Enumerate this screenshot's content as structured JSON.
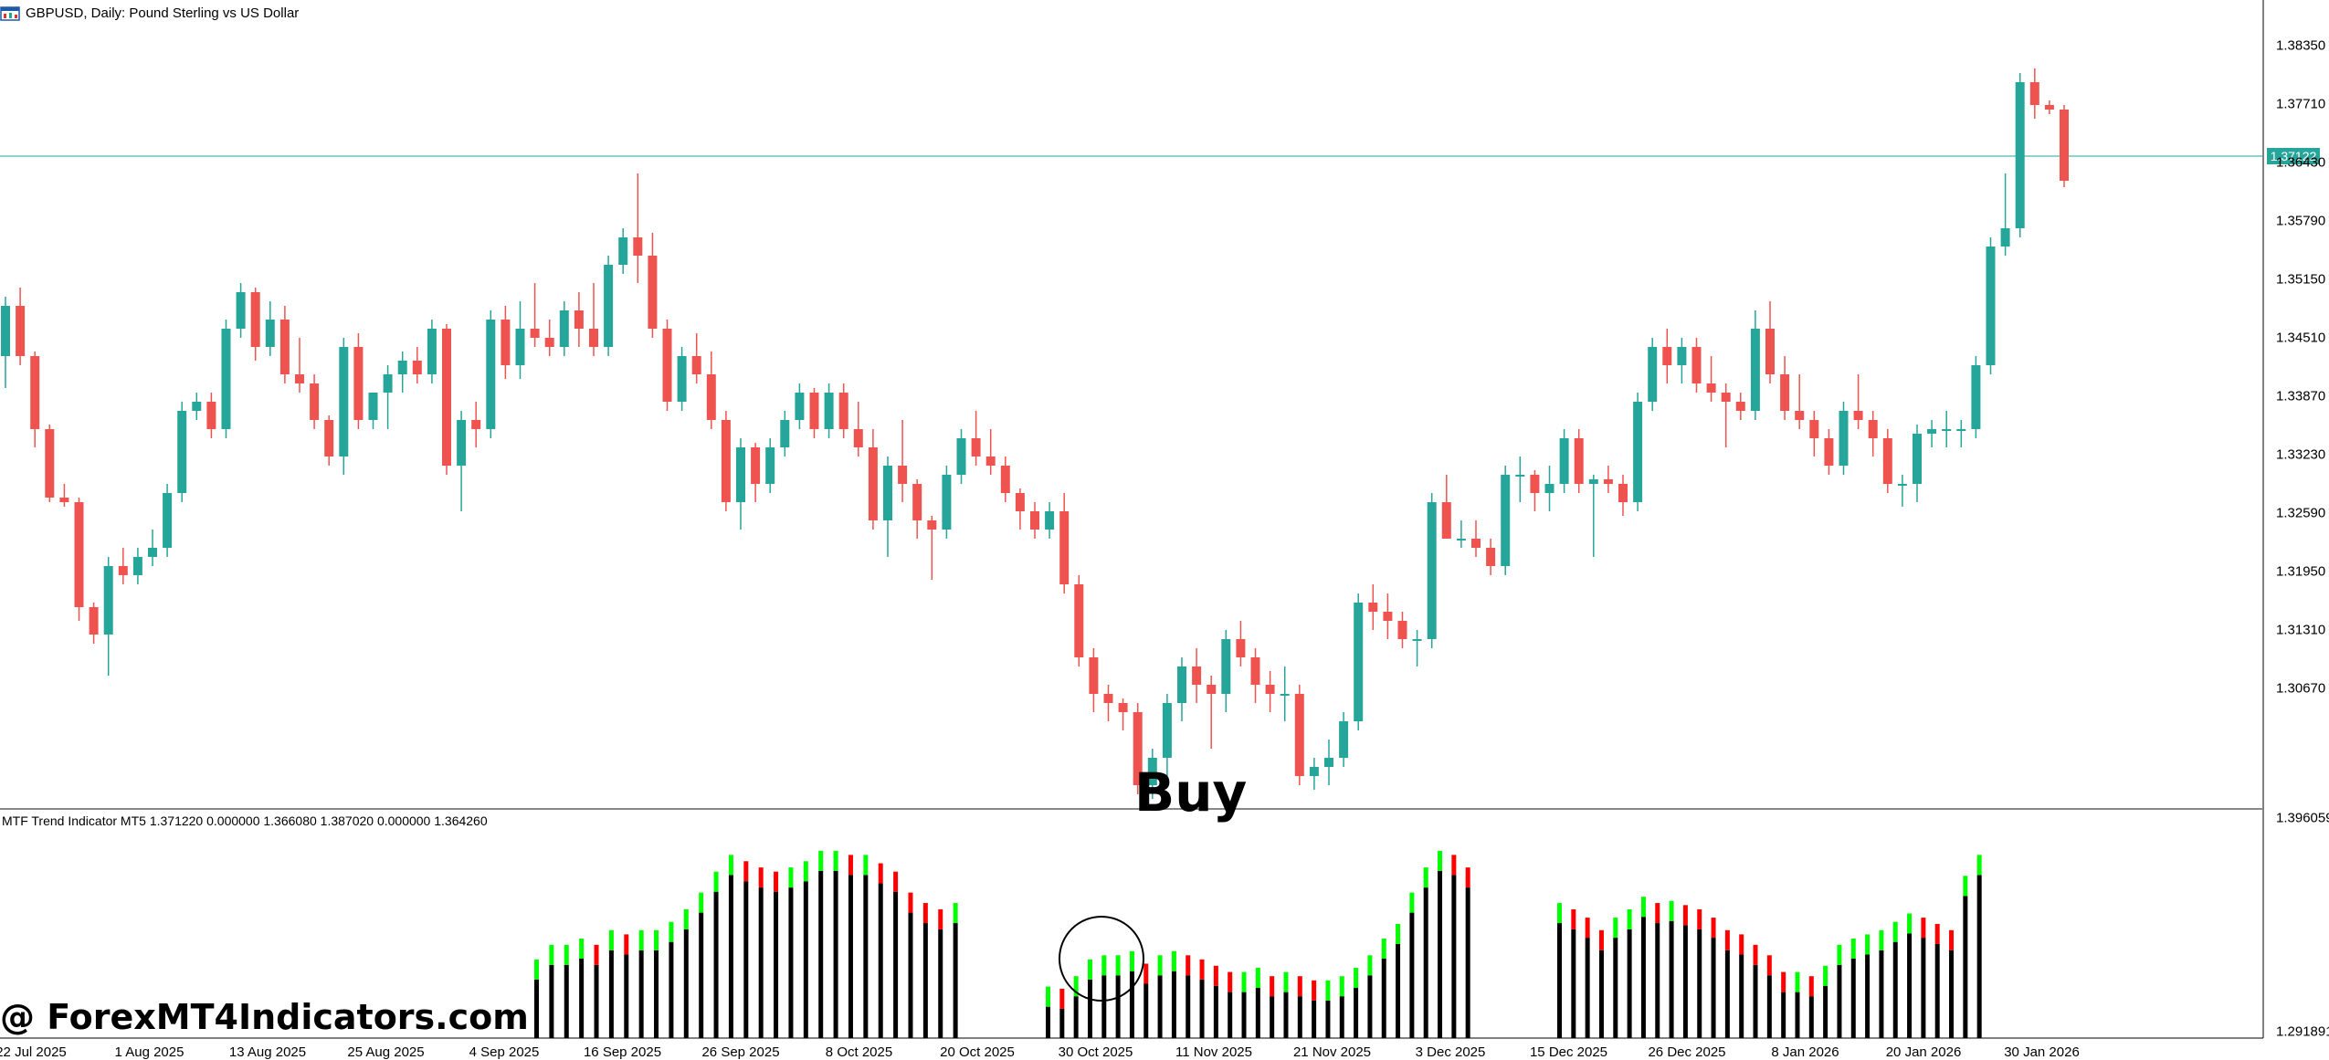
{
  "header": {
    "symbol_title": "GBPUSD, Daily:  Pound Sterling vs US Dollar",
    "icon": "chart-window-icon"
  },
  "price_axis": {
    "labels": [
      "1.38350",
      "1.37710",
      "1.36430",
      "1.35790",
      "1.35150",
      "1.34510",
      "1.33870",
      "1.33230",
      "1.32590",
      "1.31950",
      "1.31310",
      "1.30670"
    ],
    "current_price": "1.37122",
    "current_price_color": "#26a69a"
  },
  "indicator": {
    "label": "MTF Trend Indicator MT5 1.371220 0.000000 1.366080 1.387020 0.000000 1.364260",
    "axis_labels": [
      "1.396059",
      "1.291891"
    ]
  },
  "date_axis": {
    "labels": [
      "22 Jul 2025",
      "1 Aug 2025",
      "13 Aug 2025",
      "25 Aug 2025",
      "4 Sep 2025",
      "16 Sep 2025",
      "26 Sep 2025",
      "8 Oct 2025",
      "20 Oct 2025",
      "30 Oct 2025",
      "11 Nov 2025",
      "21 Nov 2025",
      "3 Dec 2025",
      "15 Dec 2025",
      "26 Dec 2025",
      "8 Jan 2026",
      "20 Jan 2026",
      "30 Jan 2026"
    ]
  },
  "annotations": {
    "buy_text": "Buy",
    "watermark": "@ ForexMT4Indicators.com"
  },
  "colors": {
    "bull": "#26a69a",
    "bear": "#ef5350",
    "indicator_up": "#00ff00",
    "indicator_down": "#ff0000",
    "indicator_bar": "#000000"
  },
  "chart_data": {
    "type": "candlestick",
    "symbol": "GBPUSD",
    "timeframe": "Daily",
    "ylim": [
      1.3025,
      1.3885
    ],
    "candles": [
      [
        1.352,
        1.3585,
        1.3485,
        1.3575
      ],
      [
        1.3575,
        1.3595,
        1.351,
        1.352
      ],
      [
        1.352,
        1.3525,
        1.342,
        1.344
      ],
      [
        1.344,
        1.3445,
        1.336,
        1.3365
      ],
      [
        1.3365,
        1.338,
        1.3355,
        1.336
      ],
      [
        1.336,
        1.3365,
        1.323,
        1.3245
      ],
      [
        1.3245,
        1.325,
        1.3205,
        1.3215
      ],
      [
        1.3215,
        1.33,
        1.317,
        1.329
      ],
      [
        1.329,
        1.331,
        1.327,
        1.328
      ],
      [
        1.328,
        1.331,
        1.327,
        1.33
      ],
      [
        1.33,
        1.333,
        1.329,
        1.331
      ],
      [
        1.331,
        1.338,
        1.33,
        1.337
      ],
      [
        1.337,
        1.347,
        1.336,
        1.346
      ],
      [
        1.346,
        1.348,
        1.345,
        1.347
      ],
      [
        1.347,
        1.348,
        1.343,
        1.344
      ],
      [
        1.344,
        1.356,
        1.343,
        1.355
      ],
      [
        1.355,
        1.36,
        1.354,
        1.359
      ],
      [
        1.359,
        1.3595,
        1.3515,
        1.353
      ],
      [
        1.353,
        1.358,
        1.352,
        1.356
      ],
      [
        1.356,
        1.3575,
        1.349,
        1.35
      ],
      [
        1.35,
        1.354,
        1.348,
        1.349
      ],
      [
        1.349,
        1.35,
        1.344,
        1.345
      ],
      [
        1.345,
        1.3455,
        1.34,
        1.341
      ],
      [
        1.341,
        1.354,
        1.339,
        1.353
      ],
      [
        1.353,
        1.3545,
        1.344,
        1.345
      ],
      [
        1.345,
        1.348,
        1.344,
        1.348
      ],
      [
        1.348,
        1.351,
        1.344,
        1.35
      ],
      [
        1.35,
        1.3525,
        1.348,
        1.3515
      ],
      [
        1.3515,
        1.353,
        1.349,
        1.35
      ],
      [
        1.35,
        1.356,
        1.349,
        1.355
      ],
      [
        1.355,
        1.3555,
        1.339,
        1.34
      ],
      [
        1.34,
        1.346,
        1.335,
        1.345
      ],
      [
        1.345,
        1.347,
        1.342,
        1.344
      ],
      [
        1.344,
        1.357,
        1.343,
        1.356
      ],
      [
        1.356,
        1.3575,
        1.3495,
        1.351
      ],
      [
        1.351,
        1.358,
        1.3495,
        1.355
      ],
      [
        1.355,
        1.36,
        1.353,
        1.354
      ],
      [
        1.354,
        1.356,
        1.352,
        1.353
      ],
      [
        1.353,
        1.358,
        1.352,
        1.357
      ],
      [
        1.357,
        1.359,
        1.353,
        1.355
      ],
      [
        1.355,
        1.36,
        1.352,
        1.353
      ],
      [
        1.353,
        1.363,
        1.352,
        1.362
      ],
      [
        1.362,
        1.366,
        1.361,
        1.365
      ],
      [
        1.365,
        1.372,
        1.36,
        1.363
      ],
      [
        1.363,
        1.3655,
        1.354,
        1.355
      ],
      [
        1.355,
        1.356,
        1.346,
        1.347
      ],
      [
        1.347,
        1.353,
        1.346,
        1.352
      ],
      [
        1.352,
        1.3545,
        1.349,
        1.35
      ],
      [
        1.35,
        1.3525,
        1.344,
        1.345
      ],
      [
        1.345,
        1.346,
        1.335,
        1.336
      ],
      [
        1.336,
        1.343,
        1.333,
        1.342
      ],
      [
        1.342,
        1.3425,
        1.336,
        1.338
      ],
      [
        1.338,
        1.343,
        1.337,
        1.342
      ],
      [
        1.342,
        1.346,
        1.341,
        1.345
      ],
      [
        1.345,
        1.349,
        1.344,
        1.348
      ],
      [
        1.348,
        1.3485,
        1.343,
        1.344
      ],
      [
        1.344,
        1.349,
        1.343,
        1.348
      ],
      [
        1.348,
        1.349,
        1.343,
        1.344
      ],
      [
        1.344,
        1.347,
        1.341,
        1.342
      ],
      [
        1.342,
        1.344,
        1.333,
        1.334
      ],
      [
        1.334,
        1.341,
        1.33,
        1.34
      ],
      [
        1.34,
        1.345,
        1.336,
        1.338
      ],
      [
        1.338,
        1.3385,
        1.332,
        1.334
      ],
      [
        1.334,
        1.3345,
        1.3275,
        1.333
      ],
      [
        1.333,
        1.34,
        1.332,
        1.339
      ],
      [
        1.339,
        1.344,
        1.338,
        1.343
      ],
      [
        1.343,
        1.346,
        1.34,
        1.341
      ],
      [
        1.341,
        1.344,
        1.339,
        1.34
      ],
      [
        1.34,
        1.341,
        1.336,
        1.337
      ],
      [
        1.337,
        1.3375,
        1.333,
        1.335
      ],
      [
        1.335,
        1.336,
        1.332,
        1.333
      ],
      [
        1.333,
        1.336,
        1.332,
        1.335
      ],
      [
        1.335,
        1.337,
        1.326,
        1.327
      ],
      [
        1.327,
        1.328,
        1.318,
        1.319
      ],
      [
        1.319,
        1.32,
        1.313,
        1.315
      ],
      [
        1.315,
        1.316,
        1.312,
        1.314
      ],
      [
        1.314,
        1.3145,
        1.311,
        1.313
      ],
      [
        1.313,
        1.314,
        1.304,
        1.305
      ],
      [
        1.305,
        1.309,
        1.3035,
        1.308
      ],
      [
        1.308,
        1.315,
        1.306,
        1.314
      ],
      [
        1.314,
        1.319,
        1.312,
        1.318
      ],
      [
        1.318,
        1.32,
        1.314,
        1.316
      ],
      [
        1.316,
        1.317,
        1.309,
        1.315
      ],
      [
        1.315,
        1.322,
        1.313,
        1.321
      ],
      [
        1.321,
        1.323,
        1.318,
        1.319
      ],
      [
        1.319,
        1.32,
        1.314,
        1.316
      ],
      [
        1.316,
        1.3175,
        1.313,
        1.315
      ],
      [
        1.315,
        1.318,
        1.312,
        1.315
      ],
      [
        1.315,
        1.316,
        1.305,
        1.306
      ],
      [
        1.306,
        1.308,
        1.3045,
        1.307
      ],
      [
        1.307,
        1.31,
        1.305,
        1.308
      ],
      [
        1.308,
        1.313,
        1.307,
        1.312
      ],
      [
        1.312,
        1.326,
        1.311,
        1.325
      ],
      [
        1.325,
        1.327,
        1.322,
        1.324
      ],
      [
        1.324,
        1.326,
        1.321,
        1.323
      ],
      [
        1.323,
        1.324,
        1.32,
        1.321
      ],
      [
        1.321,
        1.322,
        1.318,
        1.321
      ],
      [
        1.321,
        1.337,
        1.32,
        1.336
      ],
      [
        1.336,
        1.339,
        1.332,
        1.332
      ],
      [
        1.332,
        1.334,
        1.331,
        1.332
      ],
      [
        1.332,
        1.334,
        1.33,
        1.331
      ],
      [
        1.331,
        1.332,
        1.328,
        1.329
      ],
      [
        1.329,
        1.34,
        1.328,
        1.339
      ],
      [
        1.339,
        1.341,
        1.336,
        1.339
      ],
      [
        1.339,
        1.3395,
        1.335,
        1.337
      ],
      [
        1.337,
        1.34,
        1.335,
        1.338
      ],
      [
        1.338,
        1.344,
        1.337,
        1.343
      ],
      [
        1.343,
        1.344,
        1.337,
        1.338
      ],
      [
        1.338,
        1.339,
        1.33,
        1.3385
      ],
      [
        1.3385,
        1.34,
        1.337,
        1.338
      ],
      [
        1.338,
        1.339,
        1.3345,
        1.336
      ],
      [
        1.336,
        1.348,
        1.335,
        1.347
      ],
      [
        1.347,
        1.354,
        1.346,
        1.353
      ],
      [
        1.353,
        1.355,
        1.349,
        1.351
      ],
      [
        1.351,
        1.354,
        1.349,
        1.353
      ],
      [
        1.353,
        1.354,
        1.348,
        1.349
      ],
      [
        1.349,
        1.352,
        1.347,
        1.348
      ],
      [
        1.348,
        1.349,
        1.342,
        1.347
      ],
      [
        1.347,
        1.348,
        1.345,
        1.346
      ],
      [
        1.346,
        1.357,
        1.345,
        1.355
      ],
      [
        1.355,
        1.358,
        1.349,
        1.35
      ],
      [
        1.35,
        1.352,
        1.345,
        1.346
      ],
      [
        1.346,
        1.35,
        1.344,
        1.345
      ],
      [
        1.345,
        1.346,
        1.341,
        1.343
      ],
      [
        1.343,
        1.344,
        1.339,
        1.34
      ],
      [
        1.34,
        1.347,
        1.339,
        1.346
      ],
      [
        1.346,
        1.35,
        1.344,
        1.345
      ],
      [
        1.345,
        1.346,
        1.341,
        1.343
      ],
      [
        1.343,
        1.344,
        1.337,
        1.338
      ],
      [
        1.338,
        1.339,
        1.3355,
        1.338
      ],
      [
        1.338,
        1.3445,
        1.336,
        1.3435
      ],
      [
        1.3435,
        1.345,
        1.342,
        1.344
      ],
      [
        1.344,
        1.346,
        1.342,
        1.344
      ],
      [
        1.344,
        1.345,
        1.342,
        1.344
      ],
      [
        1.344,
        1.352,
        1.343,
        1.351
      ],
      [
        1.351,
        1.365,
        1.35,
        1.364
      ],
      [
        1.364,
        1.372,
        1.363,
        1.366
      ],
      [
        1.366,
        1.383,
        1.365,
        1.382
      ],
      [
        1.382,
        1.3835,
        1.378,
        1.3795
      ],
      [
        1.3795,
        1.38,
        1.3785,
        1.379
      ],
      [
        1.379,
        1.3795,
        1.3705,
        1.3712
      ]
    ],
    "indicator_bars": []
  }
}
